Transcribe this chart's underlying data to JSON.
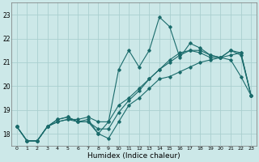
{
  "xlabel": "Humidex (Indice chaleur)",
  "xlim": [
    -0.5,
    23.5
  ],
  "ylim": [
    17.5,
    23.5
  ],
  "yticks": [
    18,
    19,
    20,
    21,
    22,
    23
  ],
  "xticks": [
    0,
    1,
    2,
    3,
    4,
    5,
    6,
    7,
    8,
    9,
    10,
    11,
    12,
    13,
    14,
    15,
    16,
    17,
    18,
    19,
    20,
    21,
    22,
    23
  ],
  "bg_color": "#cce8e8",
  "grid_color": "#aacfcf",
  "line_color": "#1a6b6b",
  "series": [
    [
      18.3,
      17.7,
      17.7,
      18.3,
      18.6,
      18.7,
      18.5,
      18.5,
      18.0,
      17.8,
      18.5,
      19.2,
      19.5,
      19.9,
      20.3,
      20.4,
      20.6,
      20.8,
      21.0,
      21.1,
      21.2,
      21.3,
      21.4,
      19.6
    ],
    [
      18.3,
      17.7,
      17.7,
      18.3,
      18.6,
      18.7,
      18.5,
      18.5,
      18.2,
      18.2,
      18.9,
      19.4,
      19.8,
      20.3,
      20.7,
      21.1,
      21.4,
      21.5,
      21.4,
      21.2,
      21.2,
      21.5,
      21.3,
      19.6
    ],
    [
      18.3,
      17.7,
      17.7,
      18.3,
      18.5,
      18.6,
      18.6,
      18.7,
      18.5,
      18.5,
      19.2,
      19.5,
      19.9,
      20.3,
      20.7,
      21.0,
      21.3,
      21.5,
      21.5,
      21.3,
      21.2,
      21.5,
      21.4,
      19.6
    ],
    [
      18.3,
      17.7,
      17.7,
      18.3,
      18.5,
      18.6,
      18.5,
      18.6,
      18.0,
      18.5,
      20.7,
      21.5,
      20.8,
      21.5,
      22.9,
      22.5,
      21.2,
      21.8,
      21.6,
      21.3,
      21.2,
      21.1,
      20.4,
      19.6
    ]
  ]
}
